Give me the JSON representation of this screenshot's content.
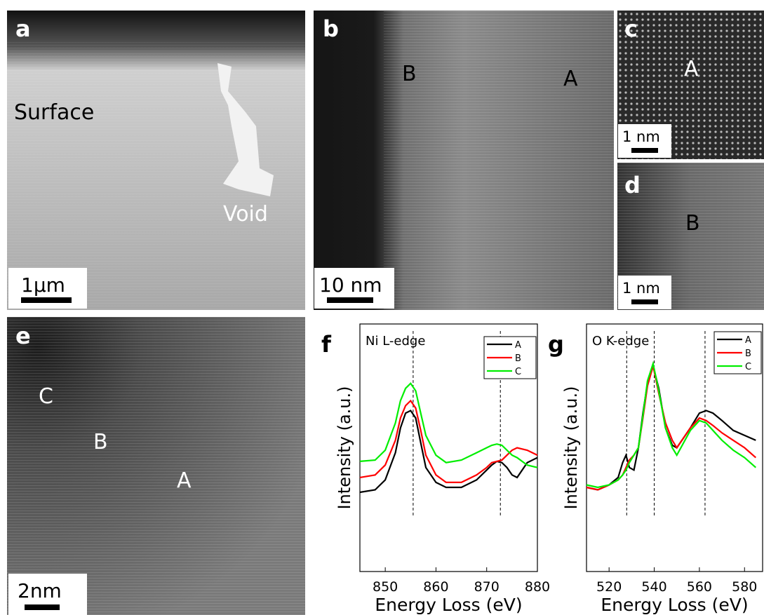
{
  "panels": [
    {
      "letter": "a",
      "labels": [
        "Surface",
        "Void"
      ],
      "scale_bar": "1μm"
    },
    {
      "letter": "b",
      "labels": [
        "B",
        "A"
      ],
      "scale_bar": "10 nm"
    },
    {
      "letter": "c",
      "labels": [
        "A"
      ],
      "scale_bar": "1 nm"
    },
    {
      "letter": "d",
      "labels": [
        "B"
      ],
      "scale_bar": "1 nm"
    },
    {
      "letter": "e",
      "labels": [
        "C",
        "B",
        "A"
      ],
      "scale_bar": "2nm"
    }
  ],
  "chart_data": [
    {
      "type": "line",
      "panel": "f",
      "title": "Ni L-edge",
      "xlabel": "Energy Loss (eV)",
      "ylabel": "Intensity (a.u.)",
      "x": [
        845,
        848,
        850,
        852,
        853,
        854,
        855,
        856,
        857,
        858,
        860,
        862,
        865,
        868,
        870,
        871,
        872,
        873,
        874,
        875,
        876,
        878,
        880
      ],
      "series": [
        {
          "name": "A",
          "color": "#000000",
          "values": [
            0.32,
            0.33,
            0.37,
            0.48,
            0.58,
            0.64,
            0.65,
            0.62,
            0.52,
            0.42,
            0.36,
            0.34,
            0.34,
            0.37,
            0.41,
            0.43,
            0.445,
            0.44,
            0.42,
            0.39,
            0.38,
            0.44,
            0.46
          ]
        },
        {
          "name": "B",
          "color": "#ff0000",
          "values": [
            0.38,
            0.39,
            0.43,
            0.53,
            0.62,
            0.67,
            0.69,
            0.66,
            0.57,
            0.47,
            0.39,
            0.36,
            0.36,
            0.39,
            0.42,
            0.44,
            0.445,
            0.45,
            0.47,
            0.49,
            0.5,
            0.49,
            0.47
          ]
        },
        {
          "name": "C",
          "color": "#00ee00",
          "values": [
            0.445,
            0.45,
            0.49,
            0.6,
            0.69,
            0.74,
            0.76,
            0.73,
            0.64,
            0.55,
            0.47,
            0.44,
            0.45,
            0.48,
            0.5,
            0.51,
            0.515,
            0.51,
            0.49,
            0.47,
            0.46,
            0.43,
            0.42
          ]
        }
      ],
      "xlim": [
        845,
        880
      ],
      "xticks": [
        850,
        860,
        870,
        880
      ],
      "ylim": [
        0,
        1
      ],
      "reference_lines": [
        855.5,
        872.7
      ],
      "legend": "upper right"
    },
    {
      "type": "line",
      "panel": "g",
      "title": "O K-edge",
      "xlabel": "Energy Loss (eV)",
      "ylabel": "Intensity (a.u.)",
      "x": [
        510,
        515,
        520,
        524,
        526,
        527.5,
        529,
        531,
        533,
        535,
        537,
        539.5,
        542,
        545,
        548,
        550,
        553,
        556,
        560,
        563,
        566,
        570,
        575,
        580,
        585
      ],
      "series": [
        {
          "name": "A",
          "color": "#000000",
          "values": [
            0.34,
            0.33,
            0.35,
            0.38,
            0.44,
            0.47,
            0.42,
            0.41,
            0.5,
            0.64,
            0.76,
            0.83,
            0.74,
            0.58,
            0.51,
            0.5,
            0.54,
            0.58,
            0.64,
            0.65,
            0.64,
            0.61,
            0.57,
            0.55,
            0.53
          ]
        },
        {
          "name": "B",
          "color": "#ff0000",
          "values": [
            0.34,
            0.33,
            0.35,
            0.37,
            0.39,
            0.42,
            0.45,
            0.47,
            0.5,
            0.62,
            0.75,
            0.83,
            0.72,
            0.6,
            0.53,
            0.5,
            0.54,
            0.58,
            0.62,
            0.61,
            0.59,
            0.56,
            0.53,
            0.5,
            0.46
          ]
        },
        {
          "name": "C",
          "color": "#00ee00",
          "values": [
            0.35,
            0.34,
            0.35,
            0.37,
            0.39,
            0.41,
            0.44,
            0.47,
            0.5,
            0.63,
            0.77,
            0.84,
            0.73,
            0.58,
            0.5,
            0.47,
            0.52,
            0.57,
            0.61,
            0.6,
            0.57,
            0.53,
            0.49,
            0.46,
            0.42
          ]
        }
      ],
      "xlim": [
        510,
        588
      ],
      "xticks": [
        520,
        540,
        560,
        580
      ],
      "ylim": [
        0,
        1
      ],
      "reference_lines": [
        527.8,
        540,
        562.5
      ],
      "legend": "upper right"
    }
  ]
}
